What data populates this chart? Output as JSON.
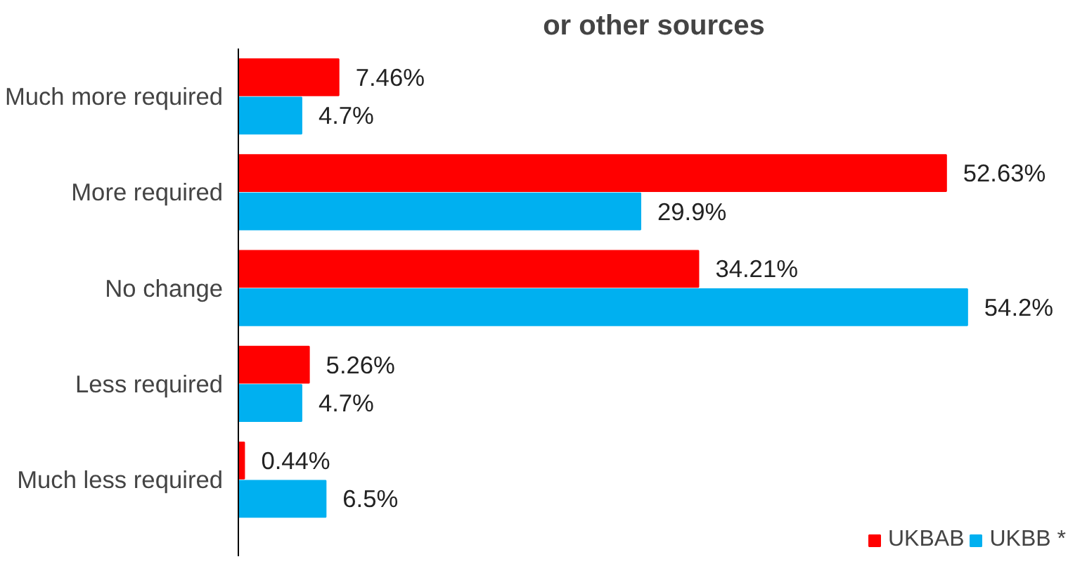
{
  "chart_data": {
    "type": "bar",
    "orientation": "horizontal",
    "title": "or other sources",
    "categories": [
      "Much more required",
      "More required",
      "No change",
      "Less required",
      "Much less required"
    ],
    "series": [
      {
        "name": "UKBAB",
        "color": "#ff0000",
        "values": [
          7.46,
          52.63,
          34.21,
          5.26,
          0.44
        ],
        "value_labels": [
          "7.46%",
          "52.63%",
          "34.21%",
          "5.26%",
          "0.44%"
        ]
      },
      {
        "name": "UKBB *",
        "color": "#00b0f0",
        "values": [
          4.7,
          29.9,
          54.2,
          4.7,
          6.5
        ],
        "value_labels": [
          "4.7%",
          "29.9%",
          "54.2%",
          "4.7%",
          "6.5%"
        ]
      }
    ],
    "legend": "bottom right"
  }
}
